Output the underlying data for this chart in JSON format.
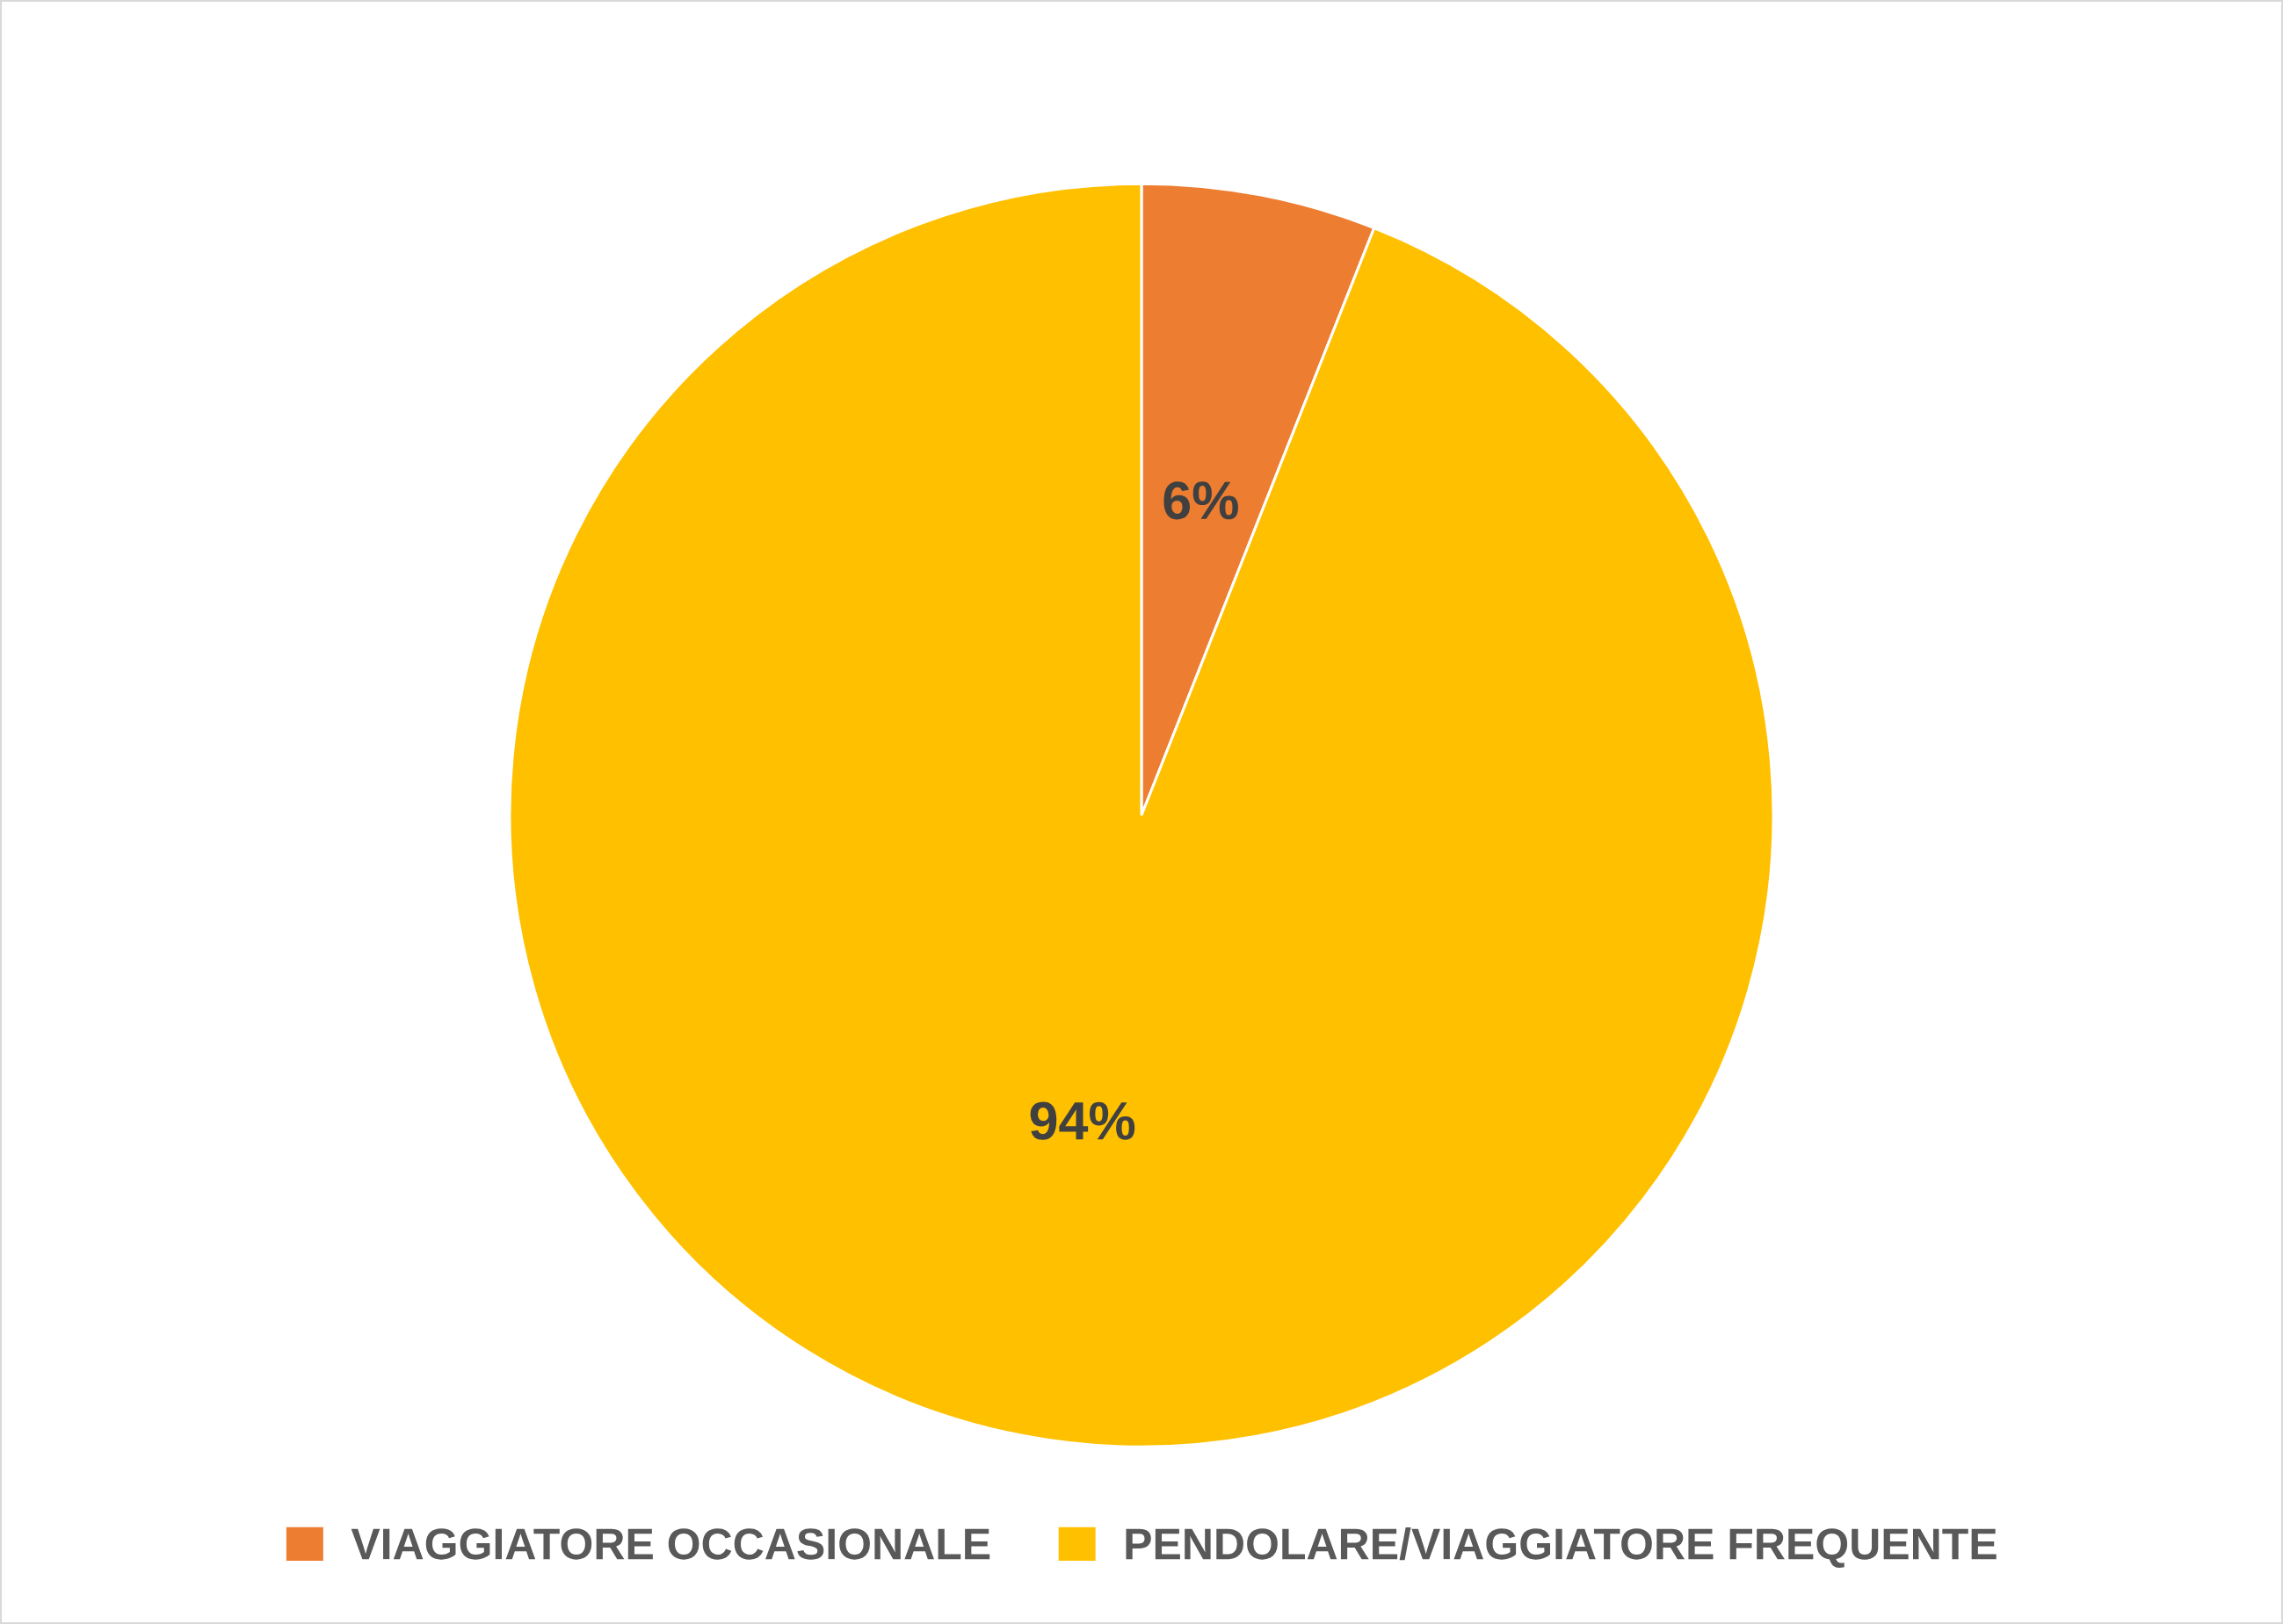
{
  "chart_data": {
    "type": "pie",
    "categories": [
      "VIAGGIATORE OCCASIONALE",
      "PENDOLARE/VIAGGIATORE FREQUENTE"
    ],
    "values": [
      6,
      94
    ],
    "colors": [
      "#ed7d31",
      "#ffc000"
    ],
    "value_labels": [
      "6%",
      "94%"
    ],
    "legend": "bottom"
  }
}
